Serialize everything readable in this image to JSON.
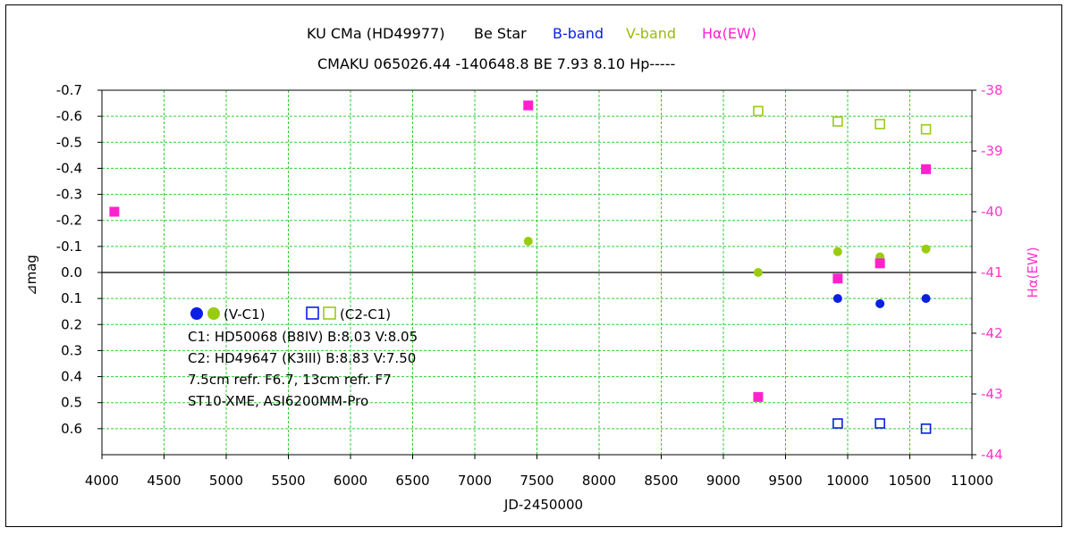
{
  "chart_data": {
    "type": "scatter",
    "title_line1": {
      "star": "KU CMa (HD49977)",
      "class": "Be Star",
      "b_label": "B-band",
      "v_label": "V-band",
      "ha_label": "Hα(EW)"
    },
    "title_line2": "CMAKU 065026.44 -140648.8 BE 7.93 8.10 Hp-----",
    "xlabel": "JD-2450000",
    "ylabel": "⊿mag",
    "ylabel_right": "Hα(EW)",
    "xlim": [
      4000,
      11000
    ],
    "ylim": [
      0.7,
      -0.7
    ],
    "ylim_right": [
      -44,
      -38
    ],
    "x_ticks": [
      "4000",
      "4500",
      "5000",
      "5500",
      "6000",
      "6500",
      "7000",
      "7500",
      "8000",
      "8500",
      "9000",
      "9500",
      "10000",
      "10500",
      "11000"
    ],
    "y_ticks": [
      "-0.7",
      "-0.6",
      "-0.5",
      "-0.4",
      "-0.3",
      "-0.2",
      "-0.1",
      "0.0",
      "0.1",
      "0.2",
      "0.3",
      "0.4",
      "0.5",
      "0.6"
    ],
    "y_ticks_right": [
      "-38",
      "-39",
      "-40",
      "-41",
      "-42",
      "-43",
      "-44"
    ],
    "grid": true,
    "colors": {
      "b": "#0a1ee6",
      "v": "#99cc11",
      "ha": "#ff22cc",
      "grid": "#33cc33",
      "right_axis": "#ff33cc"
    },
    "series": [
      {
        "name": "B (V-C1)",
        "marker": "filled-circle",
        "color": "#0a1ee6",
        "axis": "left",
        "points": [
          [
            9920,
            0.1
          ],
          [
            10260,
            0.12
          ],
          [
            10630,
            0.1
          ]
        ]
      },
      {
        "name": "V (V-C1)",
        "marker": "filled-circle",
        "color": "#99cc11",
        "axis": "left",
        "points": [
          [
            7430,
            -0.12
          ],
          [
            9280,
            0.0
          ],
          [
            9920,
            -0.08
          ],
          [
            10260,
            -0.06
          ],
          [
            10630,
            -0.09
          ]
        ]
      },
      {
        "name": "B (C2-C1)",
        "marker": "open-square",
        "color": "#0a1ee6",
        "axis": "left",
        "points": [
          [
            9920,
            0.58
          ],
          [
            10260,
            0.58
          ],
          [
            10630,
            0.6
          ]
        ]
      },
      {
        "name": "V (C2-C1)",
        "marker": "open-square",
        "color": "#99cc11",
        "axis": "left",
        "points": [
          [
            9280,
            -0.62
          ],
          [
            9920,
            -0.58
          ],
          [
            10260,
            -0.57
          ],
          [
            10630,
            -0.55
          ]
        ]
      },
      {
        "name": "Hα(EW)",
        "marker": "filled-square",
        "color": "#ff22cc",
        "axis": "right",
        "points": [
          [
            4100,
            -40.0
          ],
          [
            7430,
            -38.25
          ],
          [
            9280,
            -43.05
          ],
          [
            9920,
            -41.1
          ],
          [
            10260,
            -40.85
          ],
          [
            10630,
            -39.3
          ]
        ]
      }
    ],
    "legend": {
      "vc1": "(V-C1)",
      "c2c1": "(C2-C1)"
    },
    "notes": [
      "C1: HD50068 (B8IV) B:8.03 V:8.05",
      "C2: HD49647 (K3III) B:8.83 V:7.50",
      "7.5cm refr. F6.7, 13cm refr. F7",
      "ST10-XME, ASI6200MM-Pro"
    ]
  }
}
